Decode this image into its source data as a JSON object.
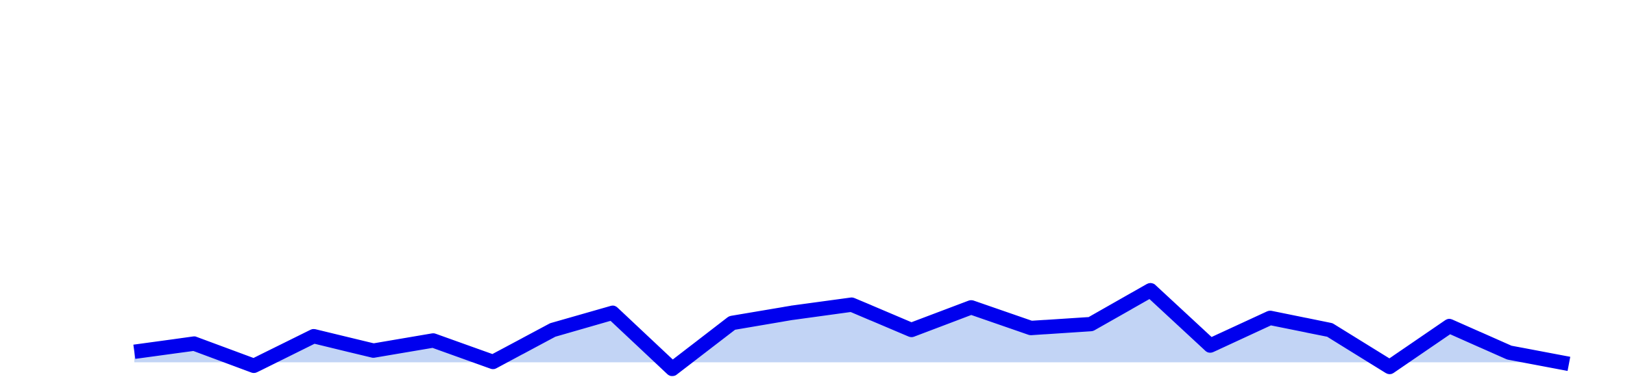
{
  "chart_data": {
    "type": "area",
    "values": [
      9.7,
      11.8,
      6.1,
      13.7,
      10,
      12.6,
      7.1,
      15.3,
      19.7,
      5.3,
      17.1,
      19.7,
      21.8,
      15.3,
      21.1,
      15.8,
      16.8,
      25.5,
      11.3,
      18.4,
      15.3,
      5.8,
      16.3,
      9.5,
      6.6
    ],
    "color": "#0000ee",
    "fill_color": "#c2d4f5",
    "ylim": [
      7,
      100
    ]
  }
}
